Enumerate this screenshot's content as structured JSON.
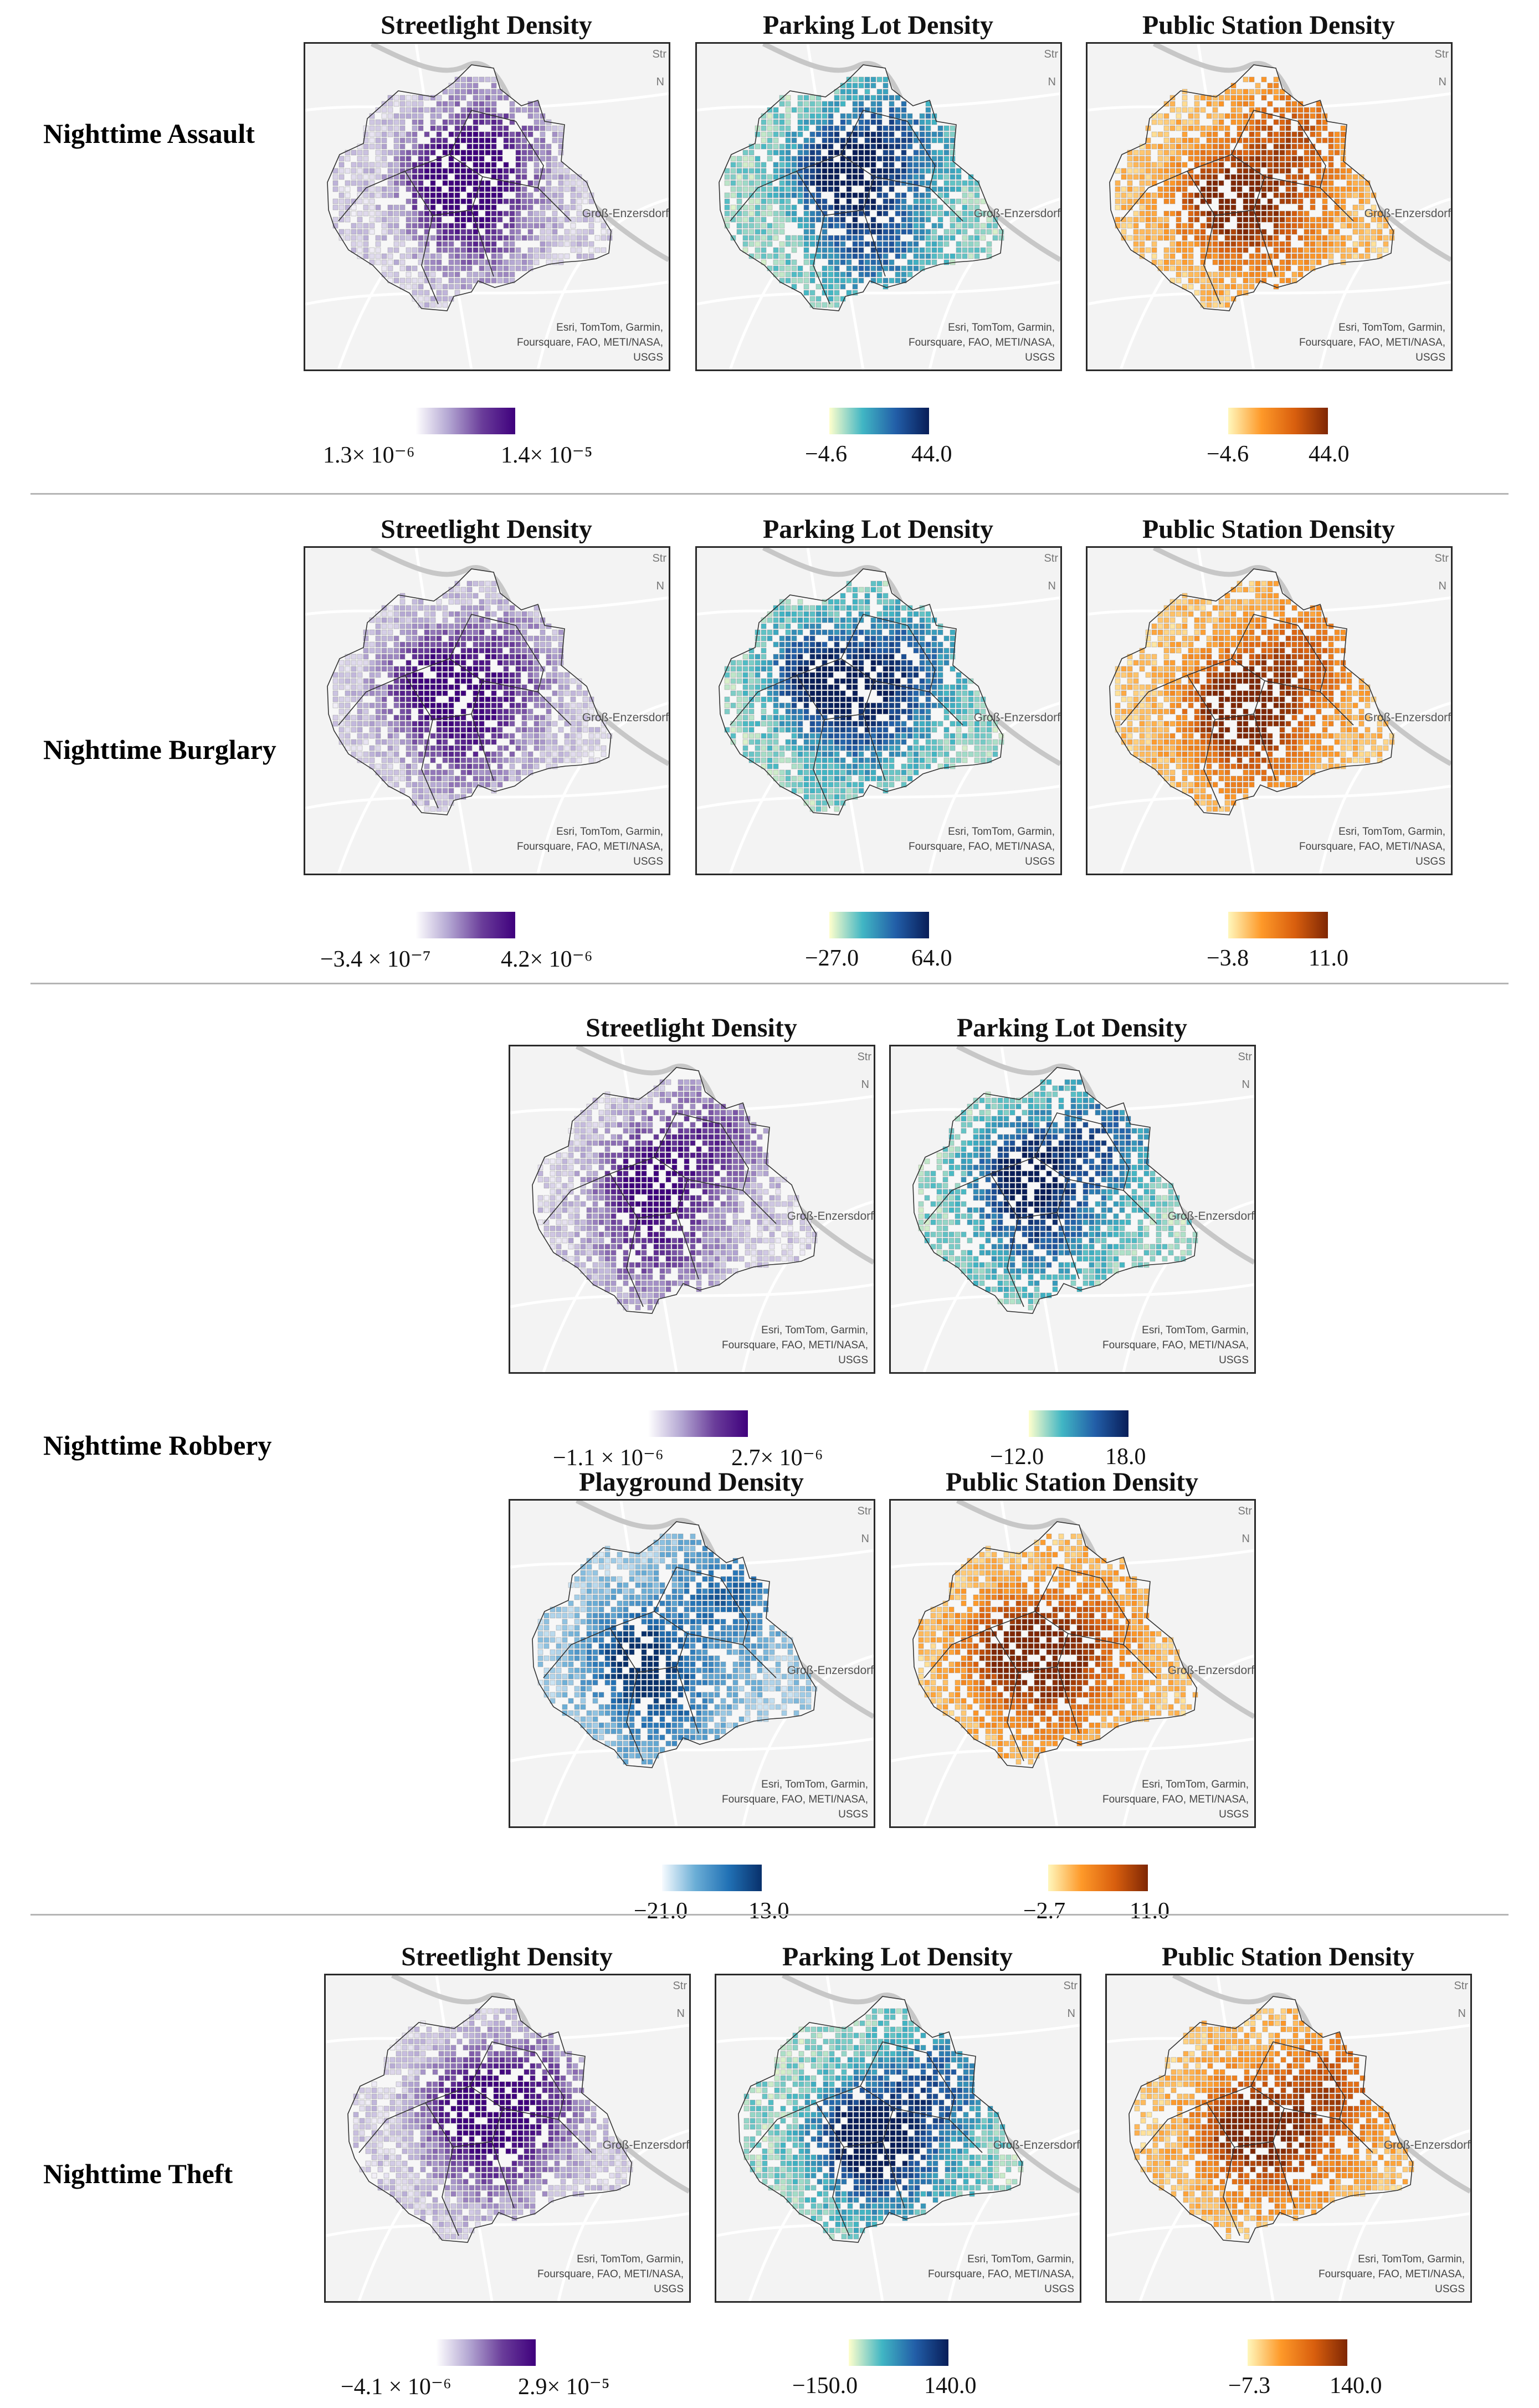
{
  "sections": [
    {
      "row_label": "Nighttime Assault",
      "panels": [
        {
          "title": "Streetlight Density",
          "scheme": "purple",
          "min": "1.3× 10⁻⁶",
          "max": "1.4× 10⁻⁵"
        },
        {
          "title": "Parking Lot Density",
          "scheme": "ygb",
          "min": "−4.6",
          "max": "44.0"
        },
        {
          "title": "Public Station Density",
          "scheme": "orange",
          "min": "−4.6",
          "max": "44.0"
        }
      ]
    },
    {
      "row_label": "Nighttime Burglary",
      "panels": [
        {
          "title": "Streetlight Density",
          "scheme": "purple",
          "min": "−3.4 × 10⁻⁷",
          "max": "4.2× 10⁻⁶"
        },
        {
          "title": "Parking Lot Density",
          "scheme": "ygb",
          "min": "−27.0",
          "max": "64.0"
        },
        {
          "title": "Public Station Density",
          "scheme": "orange",
          "min": "−3.8",
          "max": "11.0"
        }
      ]
    },
    {
      "row_label": "Nighttime Robbery",
      "panels": [
        {
          "title": "Streetlight Density",
          "scheme": "purple",
          "min": "−1.1 × 10⁻⁶",
          "max": "2.7× 10⁻⁶"
        },
        {
          "title": "Parking Lot Density",
          "scheme": "ygb",
          "min": "−12.0",
          "max": "18.0"
        },
        {
          "title": "Playground Density",
          "scheme": "blue",
          "min": "−21.0",
          "max": "13.0"
        },
        {
          "title": "Public Station Density",
          "scheme": "orange",
          "min": "−2.7",
          "max": "11.0"
        }
      ]
    },
    {
      "row_label": "Nighttime Theft",
      "panels": [
        {
          "title": "Streetlight Density",
          "scheme": "purple",
          "min": "−4.1 × 10⁻⁶",
          "max": "2.9× 10⁻⁵"
        },
        {
          "title": "Parking Lot Density",
          "scheme": "ygb",
          "min": "−150.0",
          "max": "140.0"
        },
        {
          "title": "Public Station Density",
          "scheme": "orange",
          "min": "−7.3",
          "max": "140.0"
        }
      ]
    }
  ],
  "map_labels": {
    "attribution_line1": "Esri, TomTom, Garmin,",
    "attribution_line2": "Foursquare, FAO, METI/NASA,",
    "attribution_line3": "USGS",
    "town": "Groß-Enzersdorf",
    "corner_top": "Str",
    "corner_n": "N"
  },
  "colors": {
    "purple": [
      "#ffffff",
      "#b3a6d2",
      "#6a3d9a",
      "#3f007d"
    ],
    "ygb": [
      "#ffffcc",
      "#41b6c4",
      "#225ea8",
      "#081d58"
    ],
    "orange": [
      "#fff7bc",
      "#fe9929",
      "#d95f0e",
      "#7f2704"
    ],
    "blue": [
      "#f7fbff",
      "#6baed6",
      "#2171b5",
      "#08306b"
    ]
  }
}
